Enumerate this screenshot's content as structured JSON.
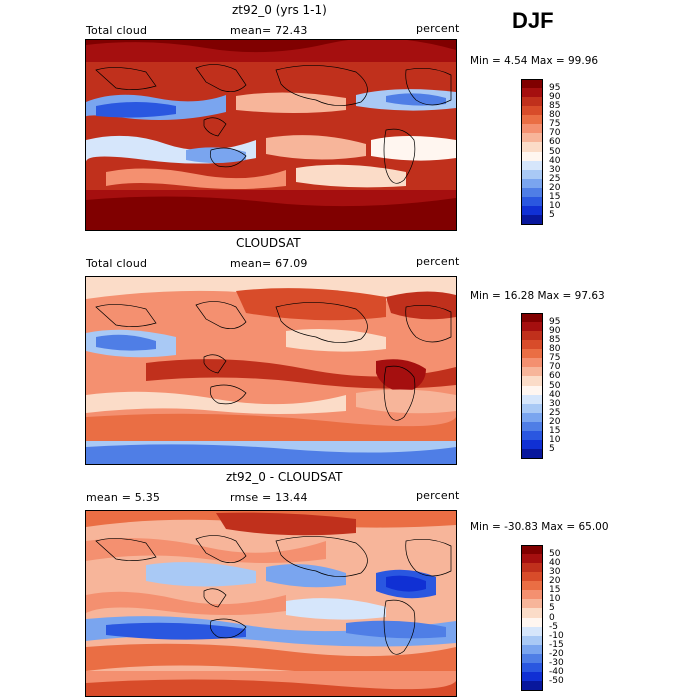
{
  "season": "DJF",
  "panels": [
    {
      "title": "zt92_0 (yrs 1-1)",
      "left": "Total cloud",
      "middle": "mean=  72.43",
      "right": "percent",
      "minmax": "Min =   4.54 Max =  99.96",
      "colorbar": {
        "labels": [
          "95",
          "90",
          "85",
          "80",
          "75",
          "70",
          "60",
          "50",
          "40",
          "30",
          "25",
          "20",
          "15",
          "10",
          "5"
        ],
        "colors": [
          "#800000",
          "#a50f0f",
          "#c0301c",
          "#d84c2a",
          "#ea6e44",
          "#f49070",
          "#f7b59a",
          "#fbdcc8",
          "#fff6f0",
          "#d6e6fb",
          "#a9c9f5",
          "#7aa5ef",
          "#4f7ee6",
          "#2a57e0",
          "#1030d4",
          "#08179c"
        ]
      }
    },
    {
      "title": "CLOUDSAT",
      "left": "Total cloud",
      "middle": "mean=  67.09",
      "right": "percent",
      "minmax": "Min =  16.28 Max =  97.63",
      "colorbar": {
        "labels": [
          "95",
          "90",
          "85",
          "80",
          "75",
          "70",
          "60",
          "50",
          "40",
          "30",
          "25",
          "20",
          "15",
          "10",
          "5"
        ],
        "colors": [
          "#800000",
          "#a50f0f",
          "#c0301c",
          "#d84c2a",
          "#ea6e44",
          "#f49070",
          "#f7b59a",
          "#fbdcc8",
          "#fff6f0",
          "#d6e6fb",
          "#a9c9f5",
          "#7aa5ef",
          "#4f7ee6",
          "#2a57e0",
          "#1030d4",
          "#08179c"
        ]
      }
    },
    {
      "title": "zt92_0 - CLOUDSAT",
      "left": "mean =    5.35",
      "middle": "rmse =  13.44",
      "right": "percent",
      "minmax": "Min = -30.83 Max =  65.00",
      "colorbar": {
        "labels": [
          "50",
          "40",
          "30",
          "20",
          "15",
          "10",
          "5",
          "0",
          "-5",
          "-10",
          "-15",
          "-20",
          "-30",
          "-40",
          "-50"
        ],
        "colors": [
          "#800000",
          "#a50f0f",
          "#c0301c",
          "#d84c2a",
          "#ea6e44",
          "#f49070",
          "#f7b59a",
          "#fbdcc8",
          "#fff6f0",
          "#d6e6fb",
          "#a9c9f5",
          "#7aa5ef",
          "#4f7ee6",
          "#2a57e0",
          "#1030d4",
          "#08179c"
        ]
      }
    }
  ]
}
